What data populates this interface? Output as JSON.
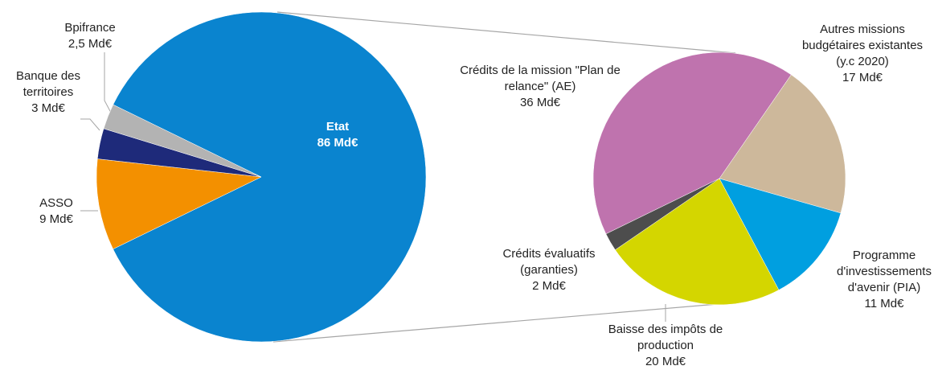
{
  "chart_data": [
    {
      "type": "pie",
      "categories": [
        "Etat",
        "ASSO",
        "Banque des territoires",
        "Bpifrance"
      ],
      "values": [
        86,
        9,
        3,
        2.5
      ],
      "value_labels": [
        "86 Md€",
        "9 Md€",
        "3 Md€",
        "2,5 Md€"
      ],
      "colors": [
        "#0a84cf",
        "#f39000",
        "#1e2a7a",
        "#b3b3b3"
      ]
    },
    {
      "type": "pie",
      "categories": [
        "Crédits de la mission \"Plan de relance\" (AE)",
        "Autres missions budgétaires existantes (y.c 2020)",
        "Programme d'investissements d'avenir (PIA)",
        "Baisse des impôts de production",
        "Crédits évaluatifs (garanties)"
      ],
      "values": [
        36,
        17,
        11,
        20,
        2
      ],
      "value_labels": [
        "36 Md€",
        "17 Md€",
        "11 Md€",
        "20 Md€",
        "2 Md€"
      ],
      "colors": [
        "#bf73ae",
        "#cdb89b",
        "#009fe0",
        "#d4d600",
        "#4d4d4d"
      ]
    }
  ]
}
